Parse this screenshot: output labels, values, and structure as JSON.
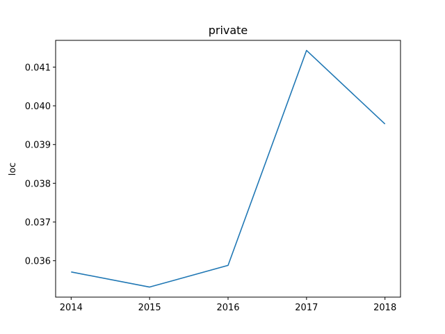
{
  "chart_data": {
    "type": "line",
    "title": "private",
    "xlabel": "",
    "ylabel": "loc",
    "x": [
      "2014",
      "2015",
      "2016",
      "2017",
      "2018"
    ],
    "series": [
      {
        "values": [
          0.03571,
          0.03532,
          0.03588,
          0.04143,
          0.03953
        ],
        "color": "#1f77b4"
      }
    ],
    "xticks": [
      "2014",
      "2015",
      "2016",
      "2017",
      "2018"
    ],
    "yticks": [
      "0.036",
      "0.037",
      "0.038",
      "0.039",
      "0.040",
      "0.041"
    ],
    "ylim": [
      0.03506,
      0.04169
    ],
    "grid": false,
    "legend": "none"
  }
}
